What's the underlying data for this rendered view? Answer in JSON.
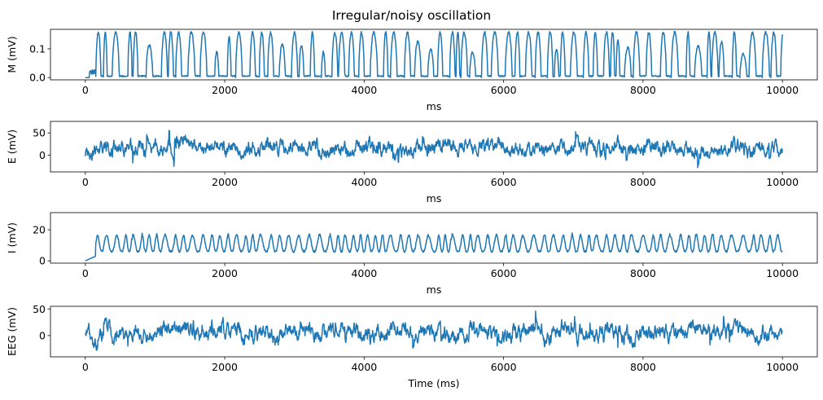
{
  "figure": {
    "title": "Irregular/noisy oscillation",
    "line_color": "#1f77b4"
  },
  "chart_data": [
    {
      "type": "line",
      "ylabel": "M (mV)",
      "xlabel": "ms",
      "xlim": [
        -500,
        10500
      ],
      "ylim": [
        -0.008,
        0.168
      ],
      "xticks": [
        0,
        2000,
        4000,
        6000,
        8000,
        10000
      ],
      "yticks": [
        0.0,
        0.1
      ],
      "ytick_labels": [
        "0.0",
        "0.1"
      ],
      "signal": {
        "x_start": 0,
        "x_end": 10000,
        "kind": "spiky",
        "seed": 11,
        "initial_value": 0.0,
        "low": 0.003,
        "high": 0.158,
        "quiet_until": 150,
        "mean_period": 115
      }
    },
    {
      "type": "line",
      "ylabel": "E (mV)",
      "xlabel": "ms",
      "xlim": [
        -500,
        10500
      ],
      "ylim": [
        -38,
        76
      ],
      "xticks": [
        0,
        2000,
        4000,
        6000,
        8000,
        10000
      ],
      "yticks": [
        0,
        50
      ],
      "ytick_labels": [
        "0",
        "50"
      ],
      "signal": {
        "x_start": 0,
        "x_end": 10000,
        "kind": "noisy",
        "seed": 23,
        "initial_value": -5,
        "mean": 17,
        "amplitude": 15,
        "min": -33,
        "max": 68
      }
    },
    {
      "type": "line",
      "ylabel": "I (mV)",
      "xlabel": "ms",
      "xlim": [
        -500,
        10500
      ],
      "ylim": [
        -1.5,
        31
      ],
      "xticks": [
        0,
        2000,
        4000,
        6000,
        8000,
        10000
      ],
      "yticks": [
        0,
        20
      ],
      "ytick_labels": [
        "0",
        "20"
      ],
      "signal": {
        "x_start": 0,
        "x_end": 10000,
        "kind": "smooth",
        "seed": 37,
        "initial_value": 0,
        "low": 6,
        "high": 24,
        "min": 0,
        "max": 29
      }
    },
    {
      "type": "line",
      "ylabel": "EEG (mV)",
      "xlabel": "Time (ms)",
      "xlim": [
        -500,
        10500
      ],
      "ylim": [
        -40,
        55
      ],
      "xticks": [
        0,
        2000,
        4000,
        6000,
        8000,
        10000
      ],
      "yticks": [
        0,
        50
      ],
      "ytick_labels": [
        "0",
        "50"
      ],
      "signal": {
        "x_start": 0,
        "x_end": 10000,
        "kind": "noisy",
        "seed": 51,
        "initial_value": -5,
        "mean": 5,
        "amplitude": 14,
        "min": -35,
        "max": 48
      }
    }
  ]
}
